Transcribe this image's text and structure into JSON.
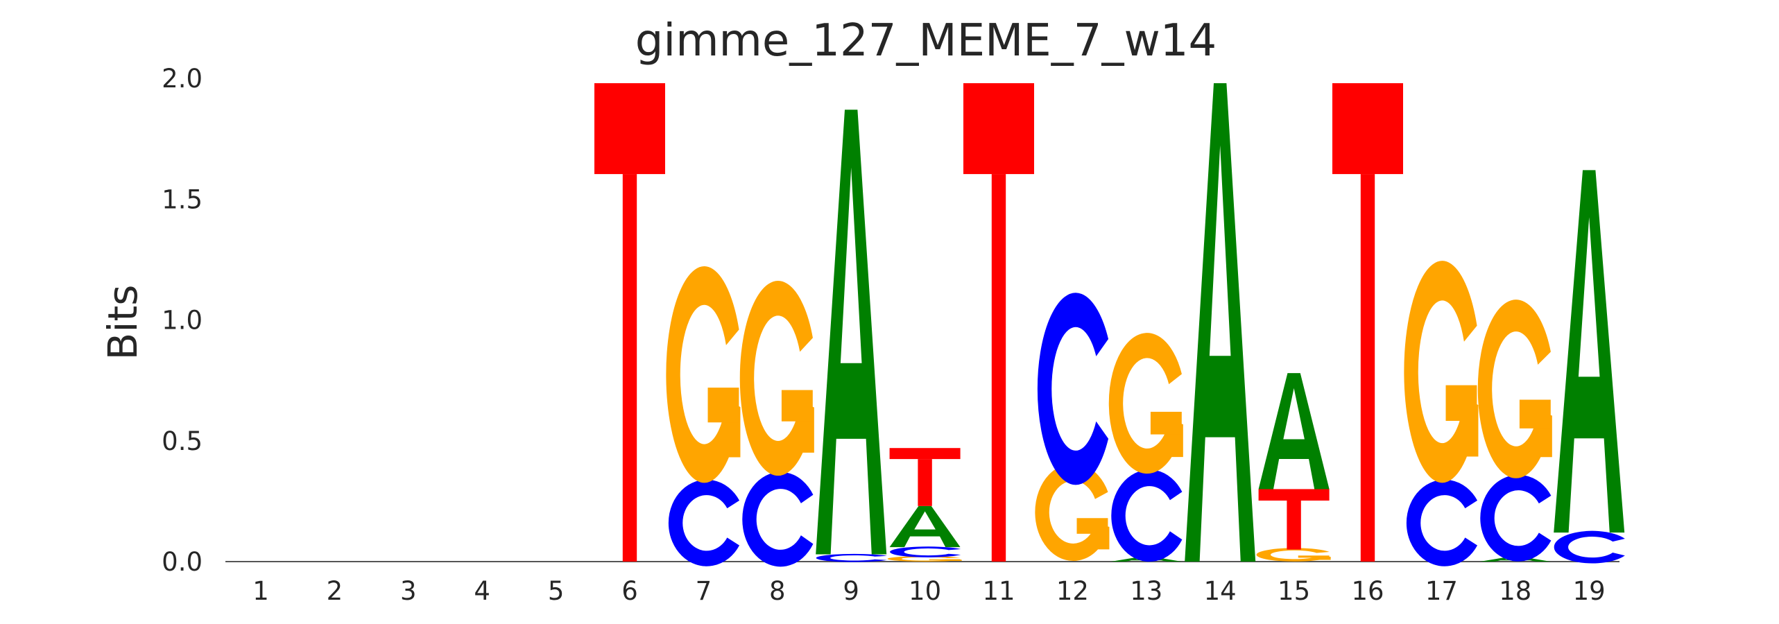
{
  "chart_data": {
    "type": "sequence-logo",
    "title": "gimme_127_MEME_7_w14",
    "xlabel": "",
    "ylabel": "Bits",
    "ylim": [
      0,
      2
    ],
    "y_ticks": [
      "0.0",
      "0.5",
      "1.0",
      "1.5",
      "2.0"
    ],
    "y_tick_values": [
      0,
      0.5,
      1,
      1.5,
      2
    ],
    "grid": false,
    "colors": {
      "A": "#008000",
      "C": "#0000ff",
      "G": "#ffa500",
      "T": "#ff0000"
    },
    "positions": [
      {
        "label": "1",
        "stack": []
      },
      {
        "label": "2",
        "stack": []
      },
      {
        "label": "3",
        "stack": []
      },
      {
        "label": "4",
        "stack": []
      },
      {
        "label": "5",
        "stack": []
      },
      {
        "label": "6",
        "stack": [
          {
            "base": "T",
            "height": 1.98
          }
        ]
      },
      {
        "label": "7",
        "stack": [
          {
            "base": "C",
            "height": 0.32
          },
          {
            "base": "G",
            "height": 0.8
          }
        ]
      },
      {
        "label": "8",
        "stack": [
          {
            "base": "C",
            "height": 0.35
          },
          {
            "base": "G",
            "height": 0.72
          }
        ]
      },
      {
        "label": "9",
        "stack": [
          {
            "base": "C",
            "height": 0.03
          },
          {
            "base": "A",
            "height": 1.84
          }
        ]
      },
      {
        "label": "10",
        "stack": [
          {
            "base": "G",
            "height": 0.02
          },
          {
            "base": "C",
            "height": 0.04
          },
          {
            "base": "A",
            "height": 0.17
          },
          {
            "base": "T",
            "height": 0.24
          }
        ]
      },
      {
        "label": "11",
        "stack": [
          {
            "base": "T",
            "height": 1.98
          }
        ]
      },
      {
        "label": "12",
        "stack": [
          {
            "base": "G",
            "height": 0.36
          },
          {
            "base": "C",
            "height": 0.71
          }
        ]
      },
      {
        "label": "13",
        "stack": [
          {
            "base": "A",
            "height": 0.02
          },
          {
            "base": "C",
            "height": 0.34
          },
          {
            "base": "G",
            "height": 0.52
          }
        ]
      },
      {
        "label": "14",
        "stack": [
          {
            "base": "A",
            "height": 1.98
          }
        ]
      },
      {
        "label": "15",
        "stack": [
          {
            "base": "G",
            "height": 0.05
          },
          {
            "base": "T",
            "height": 0.25
          },
          {
            "base": "A",
            "height": 0.48
          }
        ]
      },
      {
        "label": "16",
        "stack": [
          {
            "base": "T",
            "height": 1.98
          }
        ]
      },
      {
        "label": "17",
        "stack": [
          {
            "base": "C",
            "height": 0.32
          },
          {
            "base": "G",
            "height": 0.82
          }
        ]
      },
      {
        "label": "18",
        "stack": [
          {
            "base": "A",
            "height": 0.02
          },
          {
            "base": "C",
            "height": 0.32
          },
          {
            "base": "G",
            "height": 0.66
          }
        ]
      },
      {
        "label": "19",
        "stack": [
          {
            "base": "C",
            "height": 0.12
          },
          {
            "base": "A",
            "height": 1.5
          }
        ]
      }
    ]
  }
}
